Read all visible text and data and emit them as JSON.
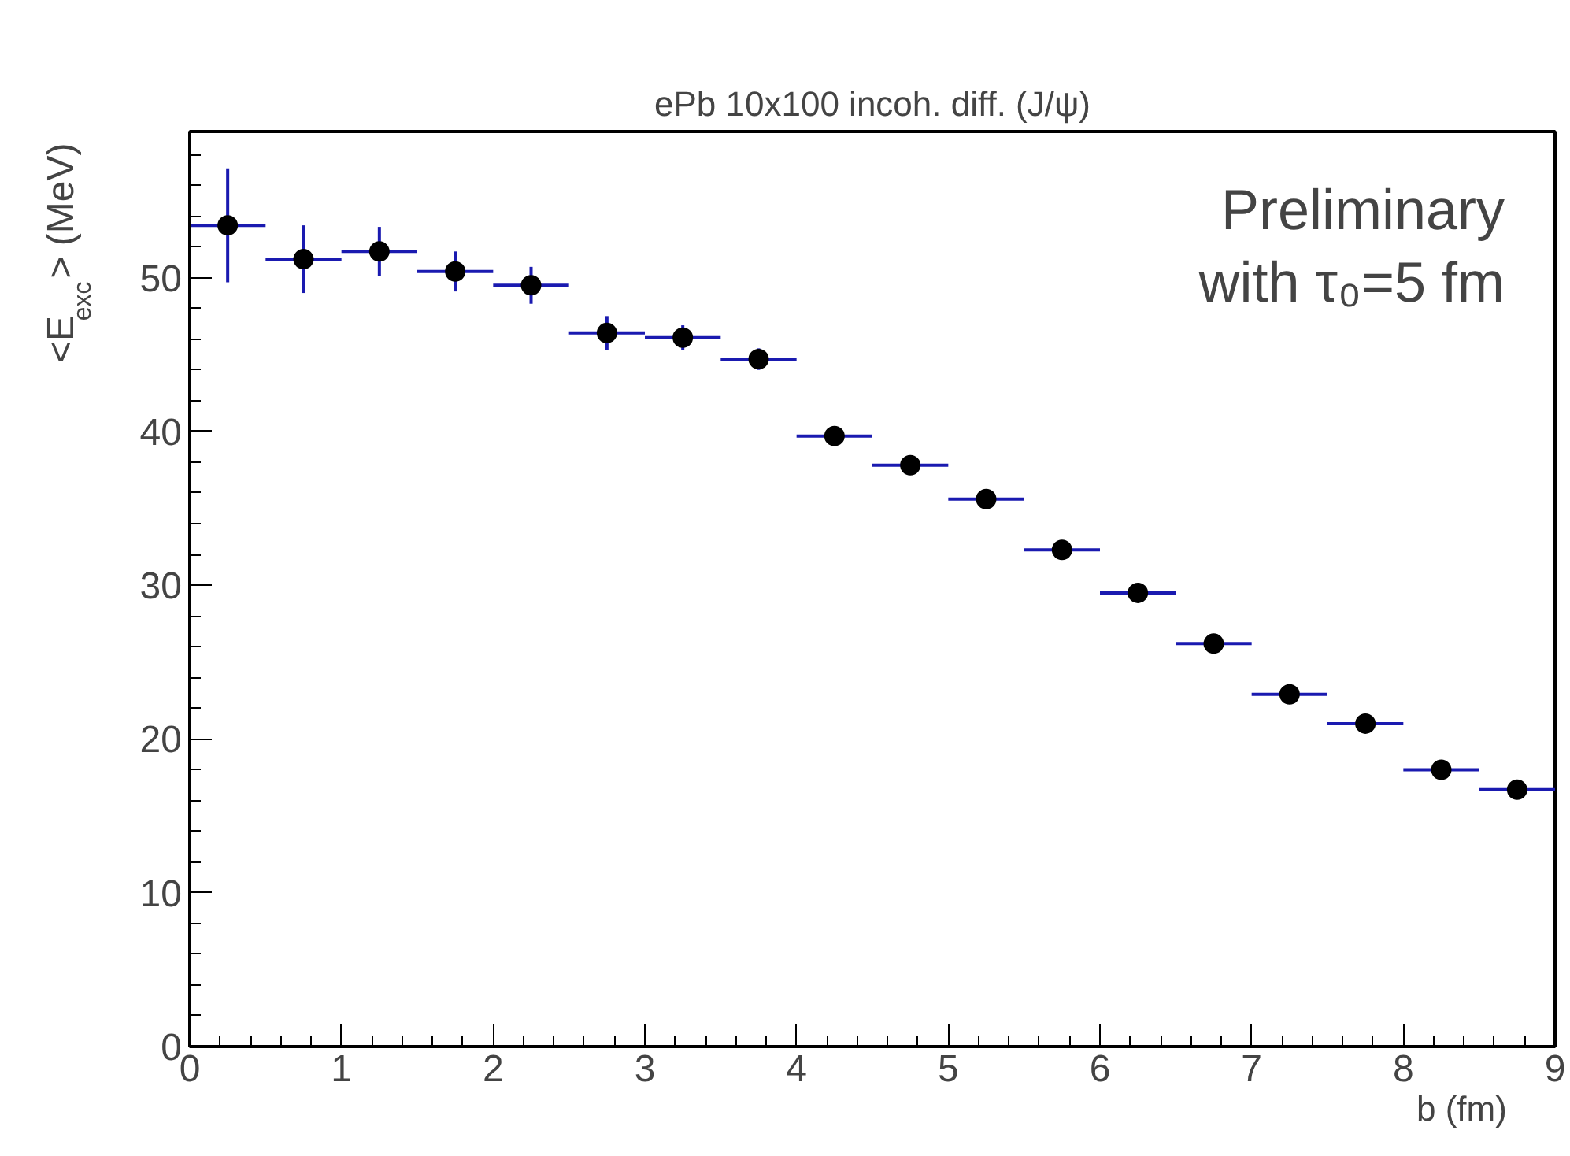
{
  "chart_data": {
    "type": "scatter",
    "title": "ePb 10x100 incoh. diff. (J/ψ)",
    "xlabel": "b      (fm)",
    "ylabel": "<E$_{exc}$>      (MeV)",
    "annotations": [
      "Preliminary",
      "with τ₀=5 fm"
    ],
    "x": [
      0.25,
      0.75,
      1.25,
      1.75,
      2.25,
      2.75,
      3.25,
      3.75,
      4.25,
      4.75,
      5.25,
      5.75,
      6.25,
      6.75,
      7.25,
      7.75,
      8.25,
      8.75
    ],
    "series": [
      {
        "color": "#000000",
        "values": [
          53.4,
          51.2,
          51.7,
          50.4,
          49.5,
          46.4,
          46.1,
          44.7,
          39.7,
          37.8,
          35.6,
          32.3,
          29.5,
          26.2,
          22.9,
          21.0,
          18.0,
          16.7
        ],
        "errors": [
          3.7,
          2.2,
          1.6,
          1.3,
          1.2,
          1.1,
          0.8,
          0.7,
          null,
          null,
          null,
          null,
          null,
          null,
          null,
          null,
          null,
          null
        ],
        "xerrors": [
          0.25,
          0.25,
          0.25,
          0.25,
          0.25,
          0.25,
          0.25,
          0.25,
          0.25,
          0.25,
          0.25,
          0.25,
          0.25,
          0.25,
          0.25,
          0.25,
          0.25,
          0.25
        ]
      }
    ],
    "xlim": [
      0,
      9
    ],
    "ylim": [
      0,
      59.5
    ],
    "xticks": [
      0,
      1,
      2,
      3,
      4,
      5,
      6,
      7,
      8,
      9
    ],
    "yticks": [
      0,
      10,
      20,
      30,
      40,
      50
    ],
    "grid": false,
    "marker": "circle"
  }
}
